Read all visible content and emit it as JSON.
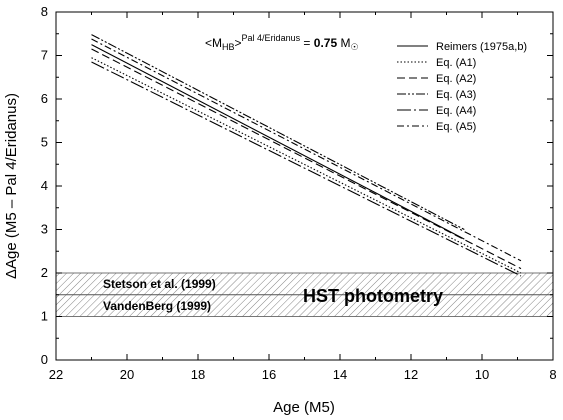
{
  "chart_data": {
    "type": "line",
    "xlabel": "Age (M5)",
    "ylabel": "ΔAge (M5 – Pal 4/Eridanus)",
    "xlim": [
      22,
      8
    ],
    "ylim": [
      0,
      8
    ],
    "x_reversed": true,
    "xticks": [
      22,
      20,
      18,
      16,
      14,
      12,
      10,
      8
    ],
    "yticks": [
      0,
      1,
      2,
      3,
      4,
      5,
      6,
      7,
      8
    ],
    "grid": false,
    "legend_position": "top-right",
    "annotation": {
      "prefix": "<M",
      "sub": "HB",
      "mid": ">",
      "sup": "Pal 4/Eridanus",
      "eq": " = ",
      "value": "0.75",
      "unit": " M",
      "sun_symbol": "☉"
    },
    "series": [
      {
        "name": "Reimers (1975a,b)",
        "dash": "solid",
        "x": [
          21,
          10.5
        ],
        "y": [
          7.25,
          2.78
        ]
      },
      {
        "name": "Eq. (A1)",
        "dash": "dotted",
        "x": [
          21,
          8.9
        ],
        "y": [
          6.95,
          2.0
        ]
      },
      {
        "name": "Eq. (A2)",
        "dash": "dashed",
        "x": [
          21,
          8.9
        ],
        "y": [
          7.15,
          2.1
        ]
      },
      {
        "name": "Eq. (A3)",
        "dash": "dashdotdot",
        "x": [
          21,
          10.5
        ],
        "y": [
          7.48,
          3.0
        ]
      },
      {
        "name": "Eq. (A4)",
        "dash": "longdashdot",
        "x": [
          21,
          8.9
        ],
        "y": [
          6.85,
          1.93
        ]
      },
      {
        "name": "Eq. (A5)",
        "dash": "dashdot",
        "x": [
          21,
          8.9
        ],
        "y": [
          7.38,
          2.28
        ]
      }
    ],
    "bands": [
      {
        "label": "Stetson et al. (1999)",
        "ymin": 1.5,
        "ymax": 2.0
      },
      {
        "label": "VandenBerg (1999)",
        "ymin": 1.0,
        "ymax": 1.5
      }
    ],
    "band_title": "HST photometry"
  }
}
